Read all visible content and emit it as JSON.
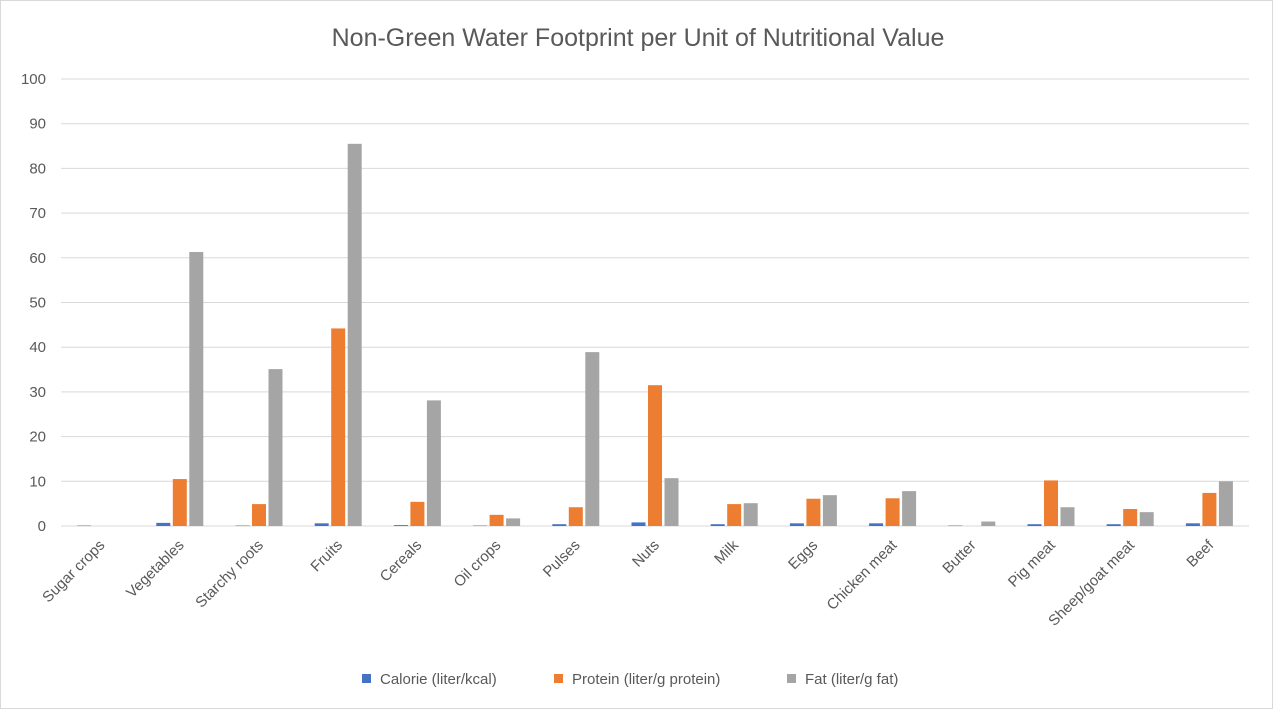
{
  "chart_data": {
    "type": "bar",
    "title": "Non-Green Water Footprint per Unit of Nutritional Value",
    "xlabel": "",
    "ylabel": "",
    "ylim": [
      0,
      100
    ],
    "yticks": [
      0,
      10,
      20,
      30,
      40,
      50,
      60,
      70,
      80,
      90,
      100
    ],
    "grid": true,
    "legend_position": "bottom",
    "categories": [
      "Sugar crops",
      "Vegetables",
      "Starchy roots",
      "Fruits",
      "Cereals",
      "Oil crops",
      "Pulses",
      "Nuts",
      "Milk",
      "Eggs",
      "Chicken meat",
      "Butter",
      "Pig meat",
      "Sheep/goat meat",
      "Beef"
    ],
    "series": [
      {
        "name": "Calorie (liter/kcal)",
        "color": "#4472c4",
        "values": [
          0.1,
          0.7,
          0.1,
          0.6,
          0.2,
          0.1,
          0.4,
          0.8,
          0.4,
          0.6,
          0.6,
          0.1,
          0.4,
          0.4,
          0.6
        ]
      },
      {
        "name": "Protein (liter/g protein)",
        "color": "#ed7d31",
        "values": [
          0,
          10.5,
          4.9,
          44.2,
          5.4,
          2.5,
          4.2,
          31.5,
          4.9,
          6.1,
          6.2,
          0,
          10.2,
          3.8,
          7.4
        ]
      },
      {
        "name": "Fat (liter/g fat)",
        "color": "#a5a5a5",
        "values": [
          0,
          61.3,
          35.1,
          85.5,
          28.1,
          1.7,
          38.9,
          10.7,
          5.1,
          6.9,
          7.8,
          1.0,
          4.2,
          3.1,
          10.0
        ]
      }
    ]
  }
}
